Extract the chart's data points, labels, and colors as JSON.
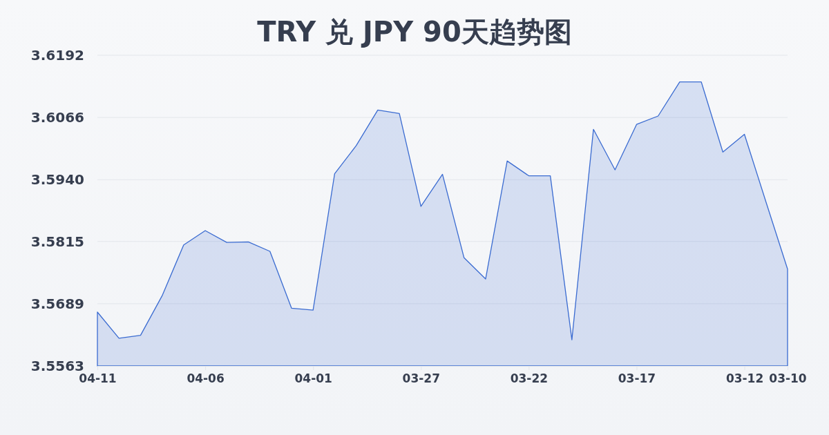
{
  "chart_data": {
    "type": "area",
    "title": "TRY 兑 JPY 90天趋势图",
    "categories": [
      "04-11",
      null,
      null,
      null,
      null,
      "04-06",
      null,
      null,
      null,
      null,
      "04-01",
      null,
      null,
      null,
      null,
      "03-27",
      null,
      null,
      null,
      null,
      "03-22",
      null,
      null,
      null,
      null,
      "03-17",
      null,
      null,
      null,
      null,
      "03-12",
      null,
      "03-10"
    ],
    "values": [
      3.5672,
      3.5619,
      3.5625,
      3.5705,
      3.5808,
      3.5837,
      3.5813,
      3.5814,
      3.5795,
      3.568,
      3.5676,
      3.5952,
      3.6009,
      3.6081,
      3.6074,
      3.5886,
      3.5951,
      3.5782,
      3.5739,
      3.5978,
      3.5948,
      3.5948,
      3.5616,
      3.6042,
      3.596,
      3.6052,
      3.6069,
      3.6138,
      3.6138,
      3.5996,
      3.6032,
      3.5895,
      3.5759
    ],
    "color": "#3a6bd1",
    "ylim": [
      3.5563,
      3.6192
    ],
    "yticks": [
      3.5563,
      3.5689,
      3.5815,
      {
        "value": 3.594,
        "label": "3.5940"
      },
      3.6066,
      3.6192
    ],
    "grid": "y"
  }
}
